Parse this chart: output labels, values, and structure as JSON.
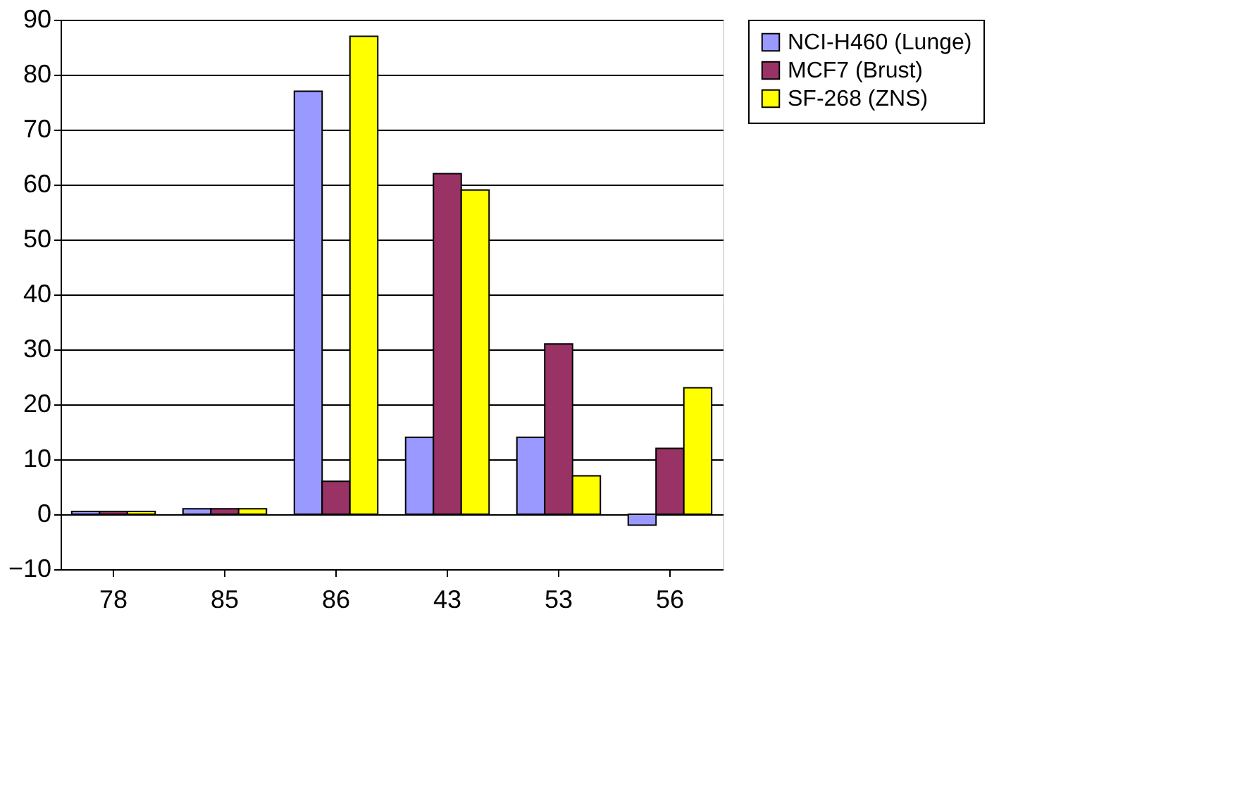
{
  "chart_data": {
    "type": "bar",
    "categories": [
      "78",
      "85",
      "86",
      "43",
      "53",
      "56"
    ],
    "series": [
      {
        "name": "NCI-H460 (Lunge)",
        "color": "#9999ff",
        "values": [
          0.5,
          1,
          77,
          14,
          14,
          -2
        ]
      },
      {
        "name": "MCF7 (Brust)",
        "color": "#993366",
        "values": [
          0.5,
          1,
          6,
          62,
          31,
          12
        ]
      },
      {
        "name": "SF-268 (ZNS)",
        "color": "#ffff00",
        "values": [
          0.5,
          1,
          87,
          59,
          7,
          23
        ]
      }
    ],
    "ylim": [
      -10,
      90
    ],
    "yticks": [
      -10,
      0,
      10,
      20,
      30,
      40,
      50,
      60,
      70,
      80,
      90
    ],
    "grid": "y",
    "legend": "right"
  }
}
